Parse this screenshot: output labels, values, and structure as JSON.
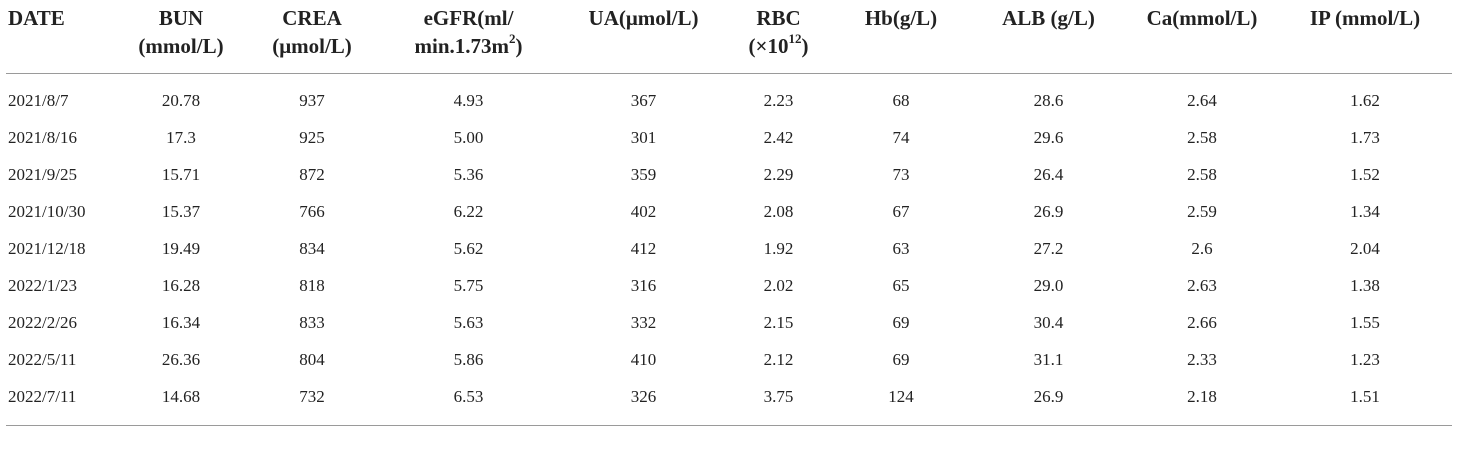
{
  "table": {
    "columns": [
      {
        "key": "date",
        "line1": "DATE",
        "line2": ""
      },
      {
        "key": "bun",
        "line1": "BUN",
        "line2": "(mmol/L)"
      },
      {
        "key": "crea",
        "line1": "CREA",
        "line2": "(μmol/L)"
      },
      {
        "key": "egfr",
        "line1": "eGFR(ml/",
        "line2": "min.1.73m",
        "sup": "2",
        "line2_end": ")"
      },
      {
        "key": "ua",
        "line1": "UA(μmol/L)",
        "line2": ""
      },
      {
        "key": "rbc",
        "line1": "RBC",
        "line2": "(×10",
        "sup": "12",
        "line2_end": ")"
      },
      {
        "key": "hb",
        "line1": "Hb(g/L)",
        "line2": ""
      },
      {
        "key": "alb",
        "line1": "ALB (g/L)",
        "line2": ""
      },
      {
        "key": "ca",
        "line1": "Ca(mmol/L)",
        "line2": ""
      },
      {
        "key": "ip",
        "line1": "IP (mmol/L)",
        "line2": ""
      }
    ],
    "rows": [
      [
        "2021/8/7",
        "20.78",
        "937",
        "4.93",
        "367",
        "2.23",
        "68",
        "28.6",
        "2.64",
        "1.62"
      ],
      [
        "2021/8/16",
        "17.3",
        "925",
        "5.00",
        "301",
        "2.42",
        "74",
        "29.6",
        "2.58",
        "1.73"
      ],
      [
        "2021/9/25",
        "15.71",
        "872",
        "5.36",
        "359",
        "2.29",
        "73",
        "26.4",
        "2.58",
        "1.52"
      ],
      [
        "2021/10/30",
        "15.37",
        "766",
        "6.22",
        "402",
        "2.08",
        "67",
        "26.9",
        "2.59",
        "1.34"
      ],
      [
        "2021/12/18",
        "19.49",
        "834",
        "5.62",
        "412",
        "1.92",
        "63",
        "27.2",
        "2.6",
        "2.04"
      ],
      [
        "2022/1/23",
        "16.28",
        "818",
        "5.75",
        "316",
        "2.02",
        "65",
        "29.0",
        "2.63",
        "1.38"
      ],
      [
        "2022/2/26",
        "16.34",
        "833",
        "5.63",
        "332",
        "2.15",
        "69",
        "30.4",
        "2.66",
        "1.55"
      ],
      [
        "2022/5/11",
        "26.36",
        "804",
        "5.86",
        "410",
        "2.12",
        "69",
        "31.1",
        "2.33",
        "1.23"
      ],
      [
        "2022/7/11",
        "14.68",
        "732",
        "6.53",
        "326",
        "3.75",
        "124",
        "26.9",
        "2.18",
        "1.51"
      ]
    ]
  }
}
